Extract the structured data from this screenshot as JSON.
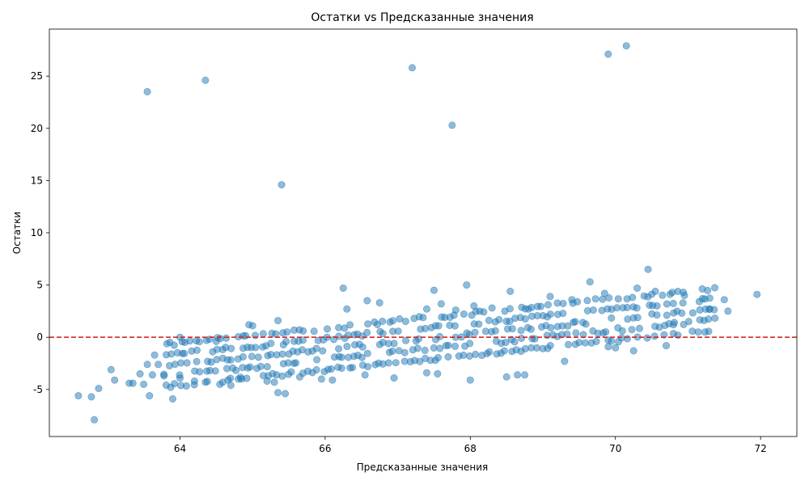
{
  "chart_data": {
    "type": "scatter",
    "title": "Остатки vs Предсказанные значения",
    "xlabel": "Предсказанные значения",
    "ylabel": "Остатки",
    "xlim": [
      62.2,
      72.5
    ],
    "ylim": [
      -9.5,
      29.5
    ],
    "xticks": [
      64,
      66,
      68,
      70,
      72
    ],
    "yticks": [
      -5,
      0,
      5,
      10,
      15,
      20,
      25
    ],
    "xtick_labels": [
      "64",
      "66",
      "68",
      "70",
      "72"
    ],
    "ytick_labels": [
      "-5",
      "0",
      "5",
      "10",
      "15",
      "20",
      "25"
    ],
    "grid": false,
    "legend": "none",
    "point_color": "#1f77b4",
    "point_alpha": 0.5,
    "reference_line": {
      "y": 0,
      "color": "#d62728",
      "style": "dashed"
    },
    "points": [
      [
        63.55,
        23.5
      ],
      [
        64.35,
        24.6
      ],
      [
        67.2,
        25.8
      ],
      [
        67.75,
        20.3
      ],
      [
        69.9,
        27.1
      ],
      [
        70.15,
        27.9
      ],
      [
        65.4,
        14.6
      ],
      [
        62.6,
        -5.6
      ],
      [
        62.78,
        -5.7
      ],
      [
        62.82,
        -7.9
      ],
      [
        62.88,
        -4.9
      ],
      [
        63.05,
        -3.1
      ],
      [
        63.1,
        -4.1
      ],
      [
        63.3,
        -4.4
      ],
      [
        63.35,
        -4.4
      ],
      [
        63.45,
        -3.5
      ],
      [
        63.5,
        -4.5
      ],
      [
        63.55,
        -2.6
      ],
      [
        63.58,
        -5.6
      ],
      [
        63.62,
        -3.6
      ],
      [
        63.65,
        -1.7
      ],
      [
        63.7,
        -2.6
      ],
      [
        63.78,
        -3.7
      ],
      [
        63.9,
        -5.9
      ],
      [
        64.0,
        0.0
      ],
      [
        66.25,
        4.7
      ],
      [
        66.58,
        3.5
      ],
      [
        66.75,
        3.3
      ],
      [
        67.5,
        4.5
      ],
      [
        67.95,
        5.0
      ],
      [
        68.55,
        4.4
      ],
      [
        69.65,
        5.3
      ],
      [
        69.85,
        4.2
      ],
      [
        70.45,
        6.5
      ],
      [
        70.3,
        4.7
      ],
      [
        70.55,
        4.4
      ],
      [
        70.95,
        4.0
      ],
      [
        71.2,
        3.7
      ],
      [
        71.5,
        3.6
      ],
      [
        71.95,
        4.1
      ],
      [
        71.55,
        2.5
      ],
      [
        71.3,
        2.7
      ],
      [
        70.25,
        -1.3
      ],
      [
        70.7,
        -0.8
      ],
      [
        70.8,
        1.2
      ],
      [
        69.9,
        -0.9
      ],
      [
        69.5,
        -0.5
      ],
      [
        69.3,
        -2.3
      ],
      [
        68.75,
        -3.6
      ],
      [
        68.65,
        -3.6
      ],
      [
        68.0,
        -4.1
      ],
      [
        67.55,
        -3.5
      ],
      [
        67.4,
        -3.4
      ],
      [
        66.95,
        -3.9
      ],
      [
        66.55,
        -3.6
      ],
      [
        66.1,
        -4.1
      ],
      [
        65.95,
        -4.0
      ],
      [
        65.65,
        -3.8
      ],
      [
        65.45,
        -5.4
      ],
      [
        65.35,
        -5.3
      ],
      [
        65.3,
        -4.3
      ],
      [
        65.2,
        -4.2
      ],
      [
        64.85,
        -4.0
      ],
      [
        64.7,
        -4.6
      ],
      [
        64.55,
        -4.5
      ],
      [
        64.35,
        -4.3
      ],
      [
        64.2,
        -4.2
      ],
      [
        64.0,
        -3.9
      ],
      [
        67.4,
        2.7
      ],
      [
        67.8,
        2.6
      ],
      [
        68.3,
        2.8
      ],
      [
        68.8,
        2.7
      ],
      [
        69.1,
        3.9
      ],
      [
        69.4,
        3.6
      ],
      [
        68.05,
        3.0
      ],
      [
        67.6,
        3.2
      ],
      [
        66.3,
        2.7
      ],
      [
        65.35,
        1.6
      ],
      [
        65.0,
        1.1
      ],
      [
        64.95,
        1.2
      ],
      [
        64.5,
        -0.4
      ],
      [
        70.0,
        -1.0
      ],
      [
        68.5,
        -3.8
      ]
    ],
    "band_lines": [
      {
        "y0": -2.7,
        "y1": 2.7
      },
      {
        "y0": -1.7,
        "y1": 3.7
      },
      {
        "y0": -0.7,
        "y1": 4.7
      },
      {
        "y0": -3.7,
        "y1": 1.7
      },
      {
        "y0": -4.7,
        "y1": 0.7
      }
    ],
    "band_x_range": [
      63.8,
      71.4
    ],
    "band_step": 0.07
  }
}
